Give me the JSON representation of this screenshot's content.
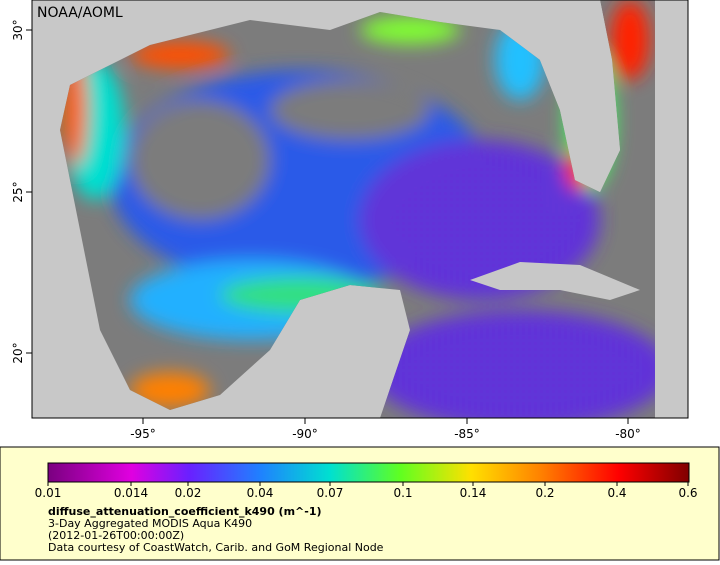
{
  "map": {
    "credit": "NOAA/AOML",
    "lon_ticks": [
      "-95°",
      "-90°",
      "-85°",
      "-80°"
    ],
    "lat_ticks": [
      "20°",
      "25°",
      "30°"
    ],
    "colorbar": {
      "labels": [
        "0.01",
        "0.014",
        "0.02",
        "0.04",
        "0.07",
        "0.1",
        "0.14",
        "0.2",
        "0.4",
        "0.6"
      ]
    },
    "caption": {
      "variable": "diffuse_attenuation_coefficient_k490 (m^-1)",
      "product": "3-Day Aggregated MODIS Aqua K490",
      "time": "(2012-01-26T00:00:00Z)",
      "source": "Data courtesy of CoastWatch, Carib. and GoM Regional Node"
    }
  }
}
